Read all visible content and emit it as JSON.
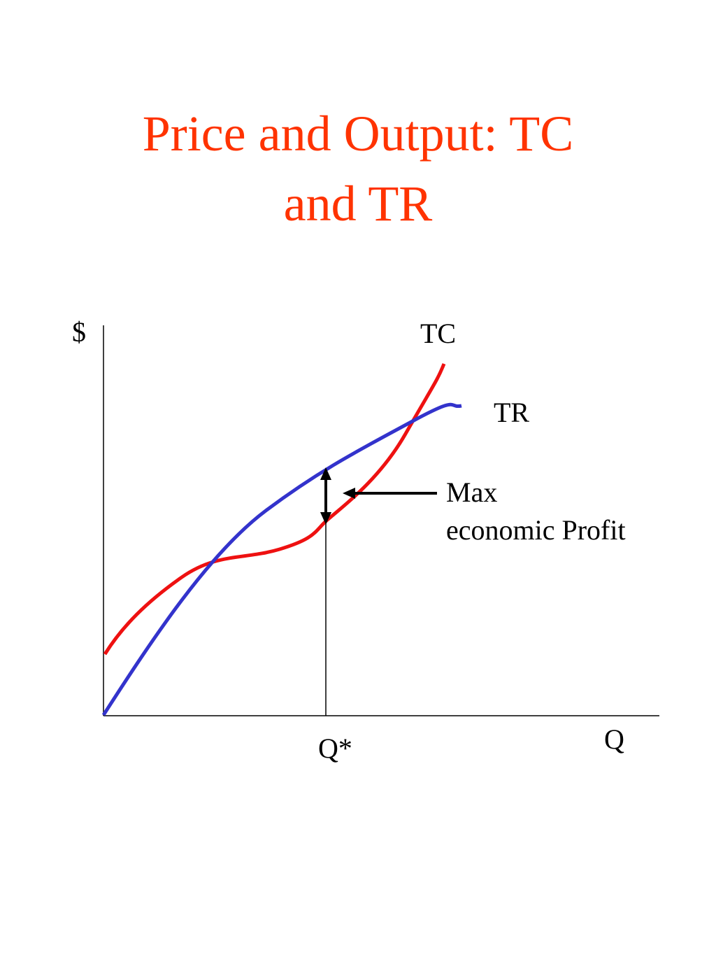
{
  "title_lines": [
    "Price and Output: TC",
    "and TR"
  ],
  "y_axis_label": "$",
  "x_axis_label": "Q",
  "x_marker_label": "Q*",
  "curve_labels": {
    "tc": "TC",
    "tr": "TR"
  },
  "annotation_lines": [
    "Max",
    "economic Profit"
  ]
}
